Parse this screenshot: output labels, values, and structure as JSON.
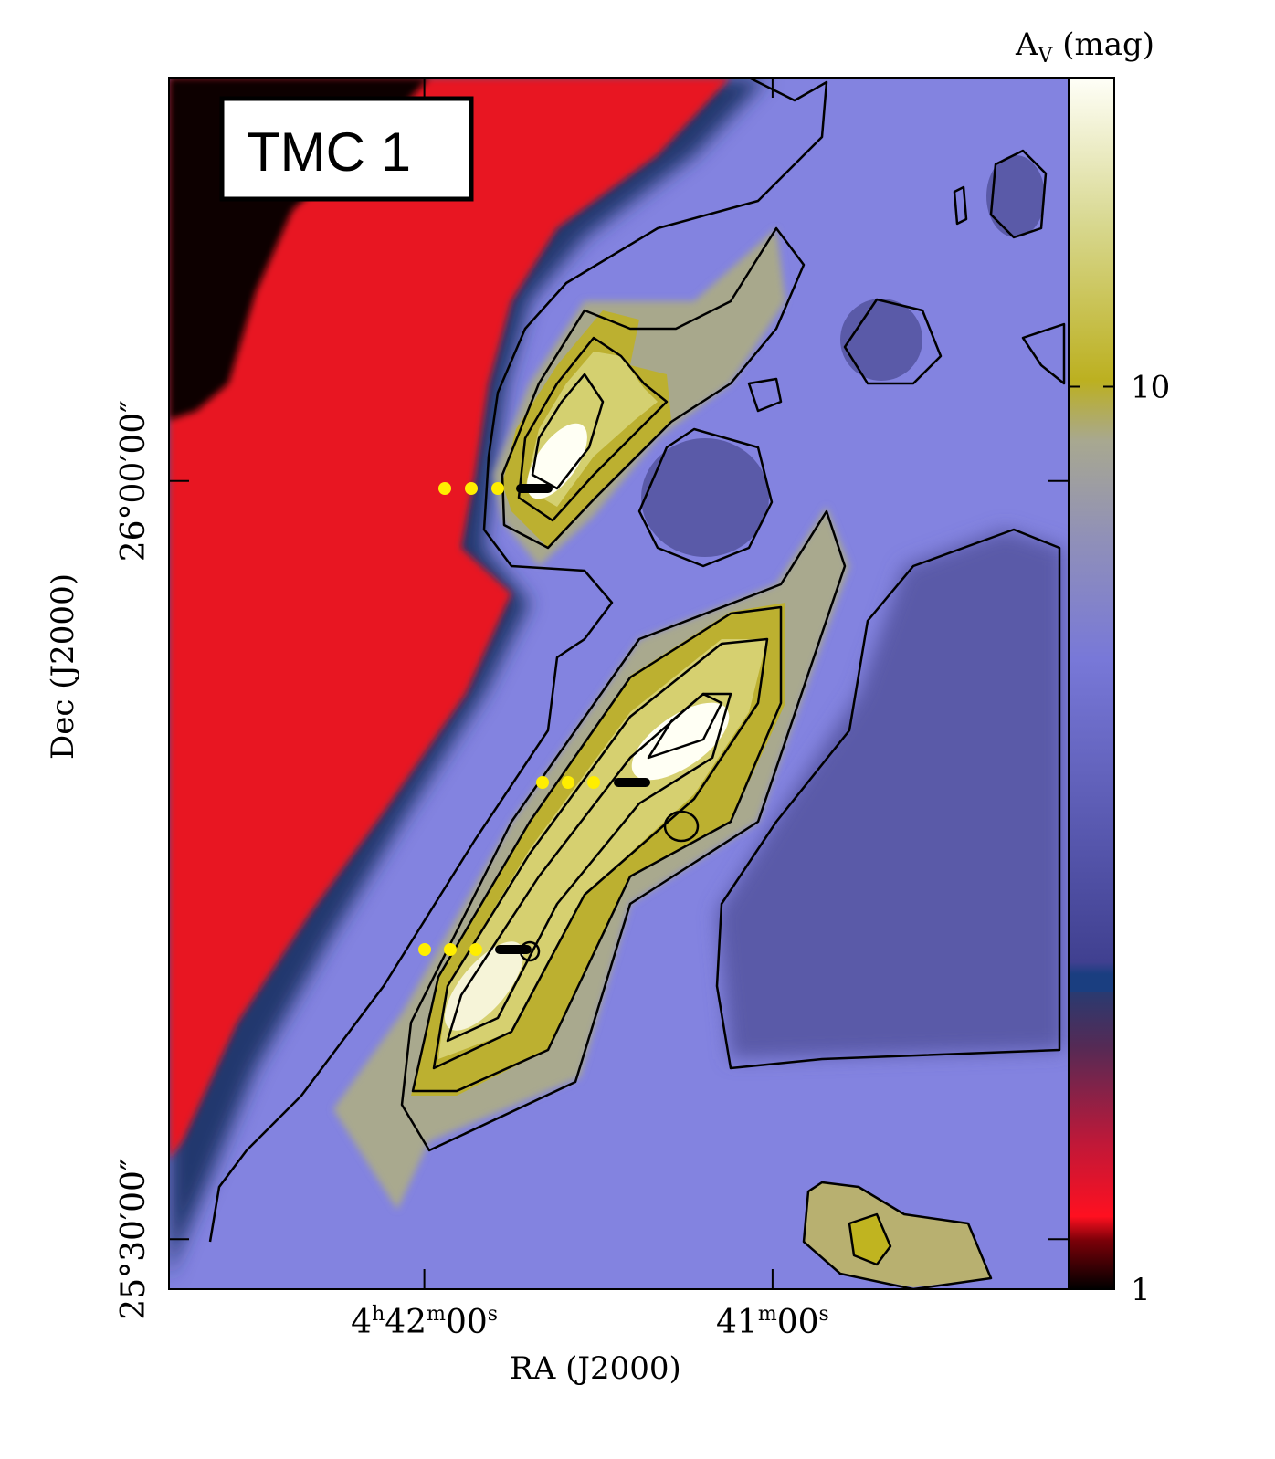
{
  "chart_data": {
    "type": "image-map",
    "title": "TMC 1",
    "xlabel": "RA (J2000)",
    "ylabel": "Dec (J2000)",
    "xlim": [
      16964,
      16809
    ],
    "xticks": [
      {
        "value": 16920,
        "label": "4h42m00s"
      },
      {
        "value": 16860,
        "label": "41m00s"
      }
    ],
    "ylim": [
      25.467,
      26.266
    ],
    "yticks": [
      {
        "value": 26,
        "label": "26°00′00″"
      },
      {
        "value": 25.5,
        "label": "25°30′00″"
      }
    ],
    "colorbar": {
      "label": "AV (mag)",
      "scale": "log",
      "lim": [
        1,
        22
      ],
      "ticks": [
        1,
        10
      ]
    }
  }
}
